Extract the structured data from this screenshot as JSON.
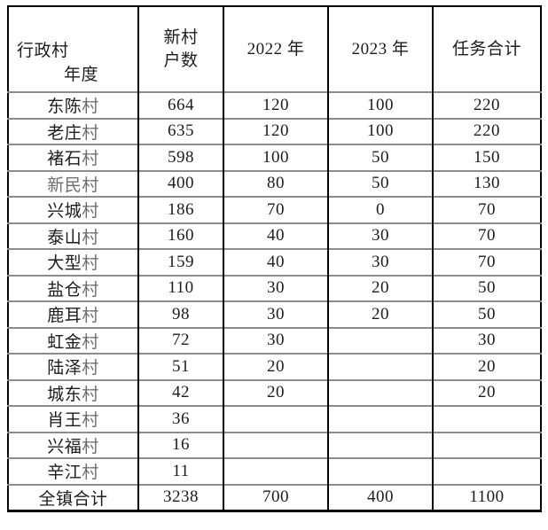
{
  "page": {
    "background": "#ffffff"
  },
  "table": {
    "title_semantic": "village-new-household-task-table",
    "header": {
      "corner_row_label": "行政村",
      "corner_col_label": "年度",
      "columns": [
        "新村\n户数",
        "2022 年",
        "2023 年",
        "任务合计"
      ]
    },
    "rows": [
      [
        "东陈村",
        "664",
        "120",
        "100",
        "220"
      ],
      [
        "老庄村",
        "635",
        "120",
        "100",
        "220"
      ],
      [
        "褚石村",
        "598",
        "100",
        "50",
        "150"
      ],
      [
        "新民村",
        "400",
        "80",
        "50",
        "130"
      ],
      [
        "兴城村",
        "186",
        "70",
        "0",
        "70"
      ],
      [
        "泰山村",
        "160",
        "40",
        "30",
        "70"
      ],
      [
        "大型村",
        "159",
        "40",
        "30",
        "70"
      ],
      [
        "盐仓村",
        "110",
        "30",
        "20",
        "50"
      ],
      [
        "鹿耳村",
        "98",
        "30",
        "20",
        "50"
      ],
      [
        "虹金村",
        "72",
        "30",
        "",
        "30"
      ],
      [
        "陆泽村",
        "51",
        "20",
        "",
        "20"
      ],
      [
        "城东村",
        "42",
        "20",
        "",
        "20"
      ],
      [
        "肖王村",
        "36",
        "",
        "",
        ""
      ],
      [
        "兴福村",
        "16",
        "",
        "",
        ""
      ],
      [
        "辛江村",
        "11",
        "",
        "",
        ""
      ]
    ],
    "total_row": [
      "全镇合计",
      "3238",
      "700",
      "400",
      "1100"
    ],
    "colors": {
      "border_dark": "#000000",
      "border_light": "#8c8c8c",
      "text": "#1c1c1c",
      "text_light": "#6e6e6e"
    }
  }
}
